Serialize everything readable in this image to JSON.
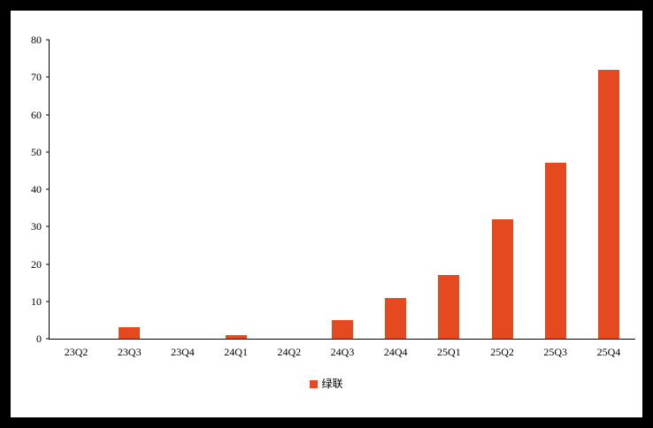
{
  "chart_data": {
    "type": "bar",
    "title": "",
    "categories": [
      "23Q2",
      "23Q3",
      "23Q4",
      "24Q1",
      "24Q2",
      "24Q3",
      "24Q4",
      "25Q1",
      "25Q2",
      "25Q3",
      "25Q4"
    ],
    "values": [
      0,
      3,
      0,
      1,
      0,
      5,
      11,
      17,
      32,
      47,
      72
    ],
    "xlabel": "",
    "ylabel": "",
    "ylim": [
      0,
      80
    ],
    "ytick_step": 10,
    "grid": false,
    "bar_color": "#E5491F",
    "axis_color": "#000000",
    "background_color": "#FFFFFF",
    "frame_color": "#000000",
    "legend_position": "bottom",
    "legend": [
      {
        "label": "绿联",
        "color": "#E5491F"
      }
    ]
  }
}
